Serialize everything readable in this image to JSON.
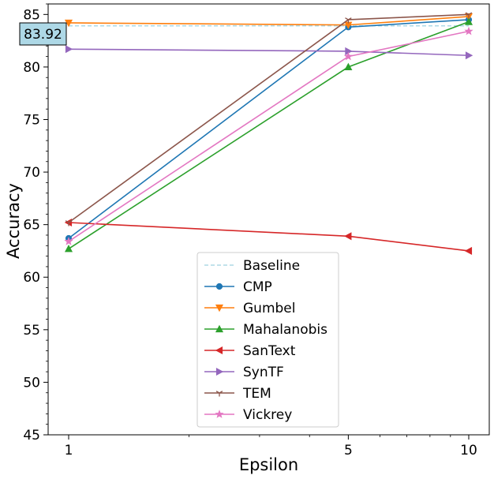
{
  "chart_data": {
    "type": "line",
    "x": [
      1,
      5,
      10
    ],
    "x_scale": "log",
    "xticks": [
      "1",
      "5",
      "10"
    ],
    "xlabel": "Epsilon",
    "ylabel": "Accuracy",
    "ylim": [
      45,
      86
    ],
    "yticks": [
      "45",
      "50",
      "55",
      "60",
      "65",
      "70",
      "75",
      "80",
      "85"
    ],
    "grid": false,
    "legend_position": "bottom-center",
    "baseline": {
      "name": "Baseline",
      "value": 83.92,
      "label": "83.92",
      "color": "#add8e6",
      "style": "dashed"
    },
    "series": [
      {
        "name": "CMP",
        "values": [
          63.7,
          83.8,
          84.5
        ],
        "color": "#1f77b4",
        "marker": "circle"
      },
      {
        "name": "Gumbel",
        "values": [
          84.2,
          84.0,
          84.8
        ],
        "color": "#ff7f0e",
        "marker": "triangle-down"
      },
      {
        "name": "Mahalanobis",
        "values": [
          62.7,
          80.0,
          84.3
        ],
        "color": "#2ca02c",
        "marker": "triangle-up"
      },
      {
        "name": "SanText",
        "values": [
          65.2,
          63.9,
          62.5
        ],
        "color": "#d62728",
        "marker": "triangle-left"
      },
      {
        "name": "SynTF",
        "values": [
          81.7,
          81.5,
          81.1
        ],
        "color": "#9467bd",
        "marker": "triangle-right"
      },
      {
        "name": "TEM",
        "values": [
          65.2,
          84.5,
          85.0
        ],
        "color": "#8c564b",
        "marker": "tri-down"
      },
      {
        "name": "Vickrey",
        "values": [
          63.4,
          81.0,
          83.4
        ],
        "color": "#e377c2",
        "marker": "star"
      }
    ]
  }
}
